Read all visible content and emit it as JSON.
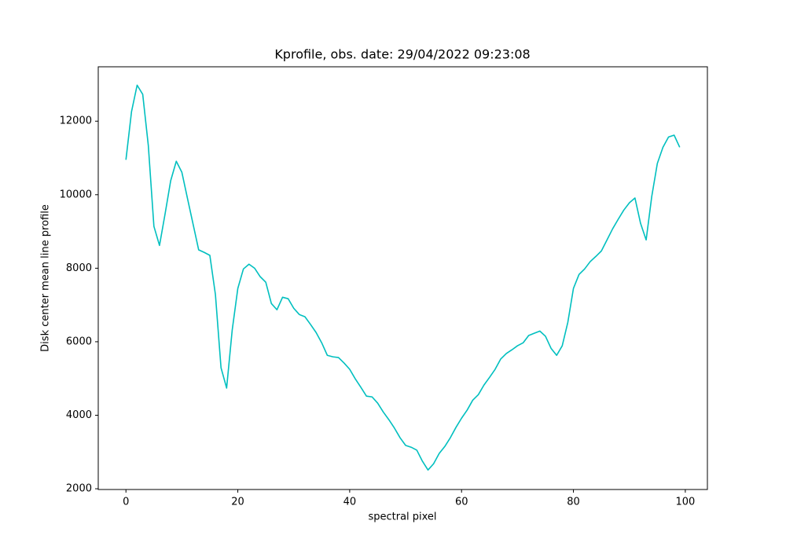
{
  "chart_data": {
    "type": "line",
    "title": "Kprofile, obs. date: 29/04/2022 09:23:08",
    "x_label": "spectral pixel",
    "y_label": "Disk center mean line profile",
    "x": [
      0,
      1,
      2,
      3,
      4,
      5,
      6,
      7,
      8,
      9,
      10,
      11,
      12,
      13,
      14,
      15,
      16,
      17,
      18,
      19,
      20,
      21,
      22,
      23,
      24,
      25,
      26,
      27,
      28,
      29,
      30,
      31,
      32,
      33,
      34,
      35,
      36,
      37,
      38,
      39,
      40,
      41,
      42,
      43,
      44,
      45,
      46,
      47,
      48,
      49,
      50,
      51,
      52,
      53,
      54,
      55,
      56,
      57,
      58,
      59,
      60,
      61,
      62,
      63,
      64,
      65,
      66,
      67,
      68,
      69,
      70,
      71,
      72,
      73,
      74,
      75,
      76,
      77,
      78,
      79,
      80,
      81,
      82,
      83,
      84,
      85,
      86,
      87,
      88,
      89,
      90,
      91,
      92,
      93,
      94,
      95,
      96,
      97,
      98,
      99
    ],
    "series": [
      {
        "name": "profile",
        "color": "#00bfbf",
        "values": [
          10950,
          12260,
          12980,
          12730,
          11340,
          9140,
          8620,
          9480,
          10380,
          10910,
          10610,
          9900,
          9200,
          8500,
          8430,
          8350,
          7280,
          5290,
          4740,
          6320,
          7450,
          7980,
          8110,
          8000,
          7770,
          7620,
          7040,
          6870,
          7210,
          7170,
          6910,
          6740,
          6680,
          6470,
          6250,
          5970,
          5630,
          5590,
          5570,
          5420,
          5250,
          4990,
          4760,
          4520,
          4500,
          4330,
          4090,
          3880,
          3650,
          3390,
          3180,
          3130,
          3050,
          2750,
          2510,
          2680,
          2960,
          3150,
          3390,
          3670,
          3920,
          4140,
          4410,
          4560,
          4820,
          5030,
          5250,
          5530,
          5680,
          5780,
          5890,
          5970,
          6170,
          6230,
          6290,
          6150,
          5820,
          5630,
          5890,
          6530,
          7450,
          7830,
          7980,
          8180,
          8320,
          8470,
          8770,
          9070,
          9330,
          9580,
          9780,
          9910,
          9220,
          8770,
          9950,
          10850,
          11290,
          11570,
          11620,
          11290
        ]
      }
    ],
    "xlim": [
      -4.95,
      103.95
    ],
    "ylim": [
      1980,
      13480
    ],
    "xticks": [
      0,
      20,
      40,
      60,
      80,
      100
    ],
    "yticks": [
      2000,
      4000,
      6000,
      8000,
      10000,
      12000
    ]
  }
}
